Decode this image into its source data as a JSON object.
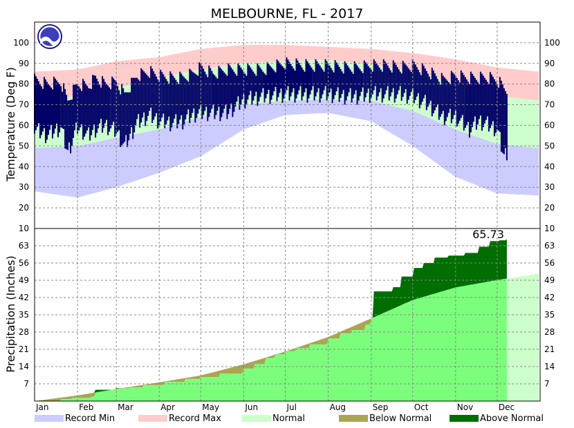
{
  "chart_data": {
    "type": "area",
    "title": "MELBOURNE, FL - 2017",
    "months": [
      "Jan",
      "Feb",
      "Mar",
      "Apr",
      "May",
      "Jun",
      "Jul",
      "Aug",
      "Sep",
      "Oct",
      "Nov",
      "Dec"
    ],
    "colors": {
      "record_min": "#ccccff",
      "record_max": "#ffcccc",
      "normal_temp": "#ccffcc",
      "observed_temp": "#000066",
      "normal_precip_light": "#ccffcc",
      "normal_precip": "#7bfe7b",
      "below_normal": "#aaa551",
      "above_normal": "#006e00"
    },
    "temperature": {
      "ylabel": "Temperature (Deg F)",
      "ylim": [
        10,
        110
      ],
      "ticks": [
        10,
        20,
        30,
        40,
        50,
        60,
        70,
        80,
        90,
        100
      ],
      "normal_high": [
        [
          1,
          72
        ],
        [
          32,
          74
        ],
        [
          60,
          78
        ],
        [
          91,
          83
        ],
        [
          121,
          87
        ],
        [
          152,
          90
        ],
        [
          182,
          91
        ],
        [
          213,
          91.5
        ],
        [
          244,
          89.5
        ],
        [
          274,
          86
        ],
        [
          305,
          80.5
        ],
        [
          335,
          74
        ],
        [
          365,
          72
        ]
      ],
      "normal_low": [
        [
          1,
          49
        ],
        [
          32,
          50
        ],
        [
          60,
          54
        ],
        [
          91,
          58
        ],
        [
          121,
          64
        ],
        [
          152,
          70
        ],
        [
          182,
          72
        ],
        [
          213,
          72.5
        ],
        [
          244,
          72
        ],
        [
          274,
          67
        ],
        [
          305,
          58
        ],
        [
          335,
          51
        ],
        [
          365,
          49
        ]
      ],
      "record_high": [
        [
          1,
          86
        ],
        [
          32,
          87
        ],
        [
          60,
          91
        ],
        [
          91,
          93
        ],
        [
          121,
          97
        ],
        [
          152,
          99
        ],
        [
          182,
          99
        ],
        [
          213,
          98
        ],
        [
          244,
          97
        ],
        [
          274,
          95
        ],
        [
          305,
          92
        ],
        [
          335,
          88
        ],
        [
          365,
          86
        ]
      ],
      "record_low": [
        [
          1,
          28
        ],
        [
          32,
          25
        ],
        [
          60,
          30
        ],
        [
          91,
          37
        ],
        [
          121,
          45
        ],
        [
          152,
          58
        ],
        [
          182,
          65
        ],
        [
          213,
          66
        ],
        [
          244,
          62
        ],
        [
          274,
          50
        ],
        [
          305,
          35
        ],
        [
          335,
          27
        ],
        [
          365,
          26
        ]
      ],
      "observed_high": [
        [
          1,
          82
        ],
        [
          10,
          80
        ],
        [
          20,
          81
        ],
        [
          25,
          72
        ],
        [
          32,
          80
        ],
        [
          40,
          79
        ],
        [
          45,
          83
        ],
        [
          52,
          80
        ],
        [
          60,
          81
        ],
        [
          66,
          75
        ],
        [
          75,
          84
        ],
        [
          84,
          86
        ],
        [
          91,
          84
        ],
        [
          100,
          83
        ],
        [
          108,
          83
        ],
        [
          115,
          85
        ],
        [
          121,
          88
        ],
        [
          130,
          85
        ],
        [
          140,
          87
        ],
        [
          152,
          87
        ],
        [
          166,
          87
        ],
        [
          182,
          90
        ],
        [
          195,
          89
        ],
        [
          213,
          89
        ],
        [
          225,
          88
        ],
        [
          235,
          88
        ],
        [
          244,
          89
        ],
        [
          255,
          89
        ],
        [
          265,
          88
        ],
        [
          274,
          89
        ],
        [
          285,
          86
        ],
        [
          296,
          82
        ],
        [
          305,
          84
        ],
        [
          315,
          83
        ],
        [
          322,
          83
        ],
        [
          329,
          83
        ],
        [
          335,
          82
        ],
        [
          340,
          78
        ],
        [
          350,
          74
        ],
        [
          357,
          76
        ],
        [
          365,
          76
        ]
      ],
      "observed_low": [
        [
          1,
          58
        ],
        [
          10,
          55
        ],
        [
          20,
          59
        ],
        [
          25,
          47
        ],
        [
          32,
          59
        ],
        [
          40,
          55
        ],
        [
          45,
          58
        ],
        [
          52,
          60
        ],
        [
          60,
          57
        ],
        [
          66,
          50
        ],
        [
          75,
          61
        ],
        [
          84,
          65
        ],
        [
          91,
          62
        ],
        [
          100,
          61
        ],
        [
          108,
          62
        ],
        [
          115,
          65
        ],
        [
          121,
          66
        ],
        [
          130,
          66
        ],
        [
          140,
          66
        ],
        [
          152,
          72
        ],
        [
          166,
          74
        ],
        [
          182,
          75
        ],
        [
          195,
          75
        ],
        [
          213,
          75
        ],
        [
          225,
          74
        ],
        [
          235,
          74
        ],
        [
          244,
          75
        ],
        [
          255,
          75
        ],
        [
          265,
          75
        ],
        [
          274,
          74
        ],
        [
          285,
          70
        ],
        [
          296,
          64
        ],
        [
          305,
          64
        ],
        [
          315,
          58
        ],
        [
          322,
          62
        ],
        [
          329,
          60
        ],
        [
          335,
          58
        ],
        [
          340,
          45
        ],
        [
          350,
          55
        ],
        [
          357,
          60
        ],
        [
          365,
          60
        ]
      ]
    },
    "precipitation": {
      "ylabel": "Precipitation (Inches)",
      "ylim": [
        0,
        70
      ],
      "ticks": [
        7,
        14,
        21,
        28,
        35,
        42,
        49,
        56,
        63
      ],
      "annotation": "65.73",
      "total": 65.73,
      "observed_through_day": 342,
      "normal_cumulative": [
        [
          1,
          0
        ],
        [
          32,
          2.3
        ],
        [
          60,
          4.9
        ],
        [
          91,
          7.6
        ],
        [
          121,
          10.4
        ],
        [
          152,
          14.9
        ],
        [
          182,
          20.1
        ],
        [
          213,
          26.0
        ],
        [
          244,
          33.5
        ],
        [
          274,
          41.0
        ],
        [
          305,
          46.1
        ],
        [
          335,
          49.1
        ],
        [
          365,
          51.7
        ]
      ],
      "observed_cumulative": [
        [
          1,
          0
        ],
        [
          20,
          0.8
        ],
        [
          28,
          1.3
        ],
        [
          42,
          1.8
        ],
        [
          45,
          4.6
        ],
        [
          60,
          5.2
        ],
        [
          70,
          5.6
        ],
        [
          80,
          6.5
        ],
        [
          95,
          7.8
        ],
        [
          110,
          9.0
        ],
        [
          121,
          9.8
        ],
        [
          135,
          11.2
        ],
        [
          152,
          13.2
        ],
        [
          160,
          15.0
        ],
        [
          168,
          17.5
        ],
        [
          175,
          19.0
        ],
        [
          182,
          20.3
        ],
        [
          190,
          21.5
        ],
        [
          200,
          23.0
        ],
        [
          213,
          25.4
        ],
        [
          222,
          27.5
        ],
        [
          230,
          28.8
        ],
        [
          240,
          31.0
        ],
        [
          244,
          33.5
        ],
        [
          246,
          44.5
        ],
        [
          260,
          46.2
        ],
        [
          266,
          50.5
        ],
        [
          275,
          54.0
        ],
        [
          282,
          56.0
        ],
        [
          290,
          58.2
        ],
        [
          300,
          59.0
        ],
        [
          312,
          60.1
        ],
        [
          322,
          62.6
        ],
        [
          330,
          64.9
        ],
        [
          337,
          65.2
        ],
        [
          342,
          65.73
        ]
      ]
    },
    "legend": [
      "Record Min",
      "Record Max",
      "Normal",
      "Below Normal",
      "Above Normal"
    ]
  }
}
